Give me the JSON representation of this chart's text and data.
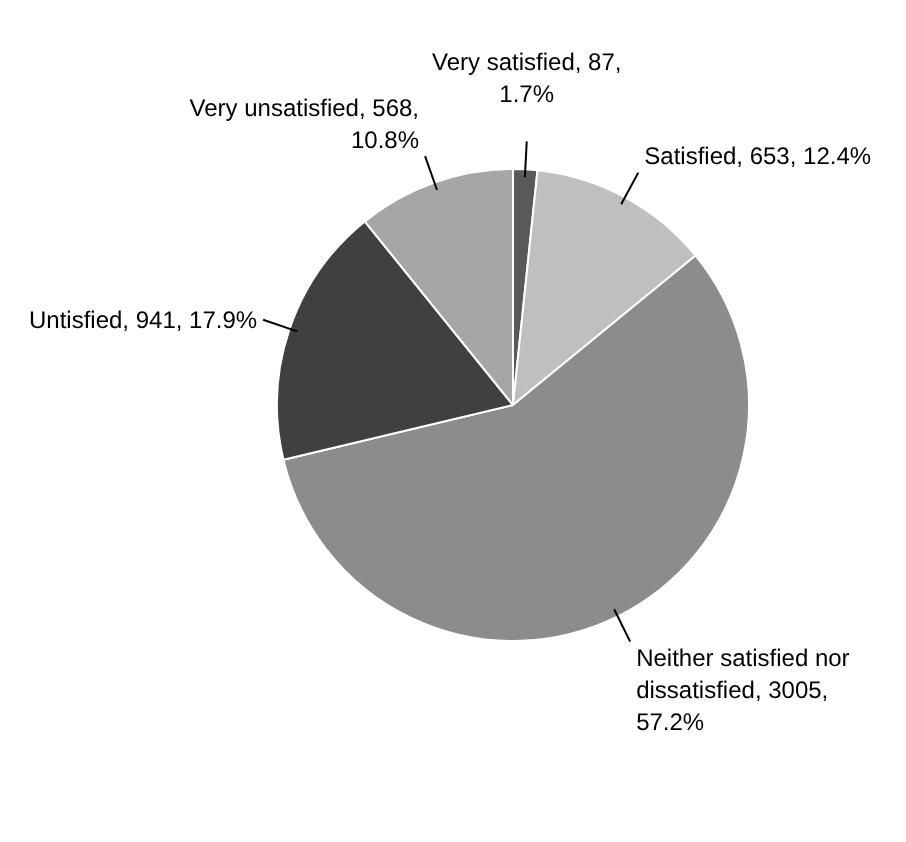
{
  "chart_data": {
    "type": "pie",
    "categories": [
      "Very satisfied",
      "Satisfied",
      "Neither satisfied nor dissatisfied",
      "Untisfied",
      "Very unsatisfied"
    ],
    "values": [
      87,
      653,
      3005,
      941,
      568
    ],
    "colors": [
      "#595959",
      "#bfbfbf",
      "#8c8c8c",
      "#404040",
      "#a6a6a6"
    ],
    "value_labels": [
      "87, 1.7%",
      "653, 12.4%",
      "3005, 57.2%",
      "941, 17.9%",
      "568, 10.8%"
    ],
    "legend": false
  }
}
